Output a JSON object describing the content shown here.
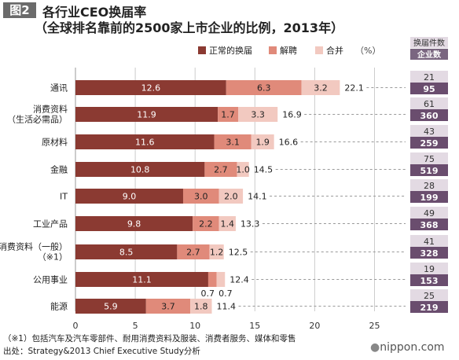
{
  "figure_tag": "图2",
  "title_line1": "各行业CEO换届率",
  "title_line2": "（全球排名靠前的2500家上市企业的比例，2013年）",
  "footnote": "（※1）包括汽车及汽车零部件、耐用消费资料及服装、消费者服务、媒体和零售",
  "source": "出处：Strategy&2013 Chief Executive Study分析",
  "brand": {
    "dot": "●",
    "name": "nippon.com"
  },
  "colors": {
    "normal": "#8b3a32",
    "dismissal": "#e08a7a",
    "merger": "#f2c9c0",
    "dash": "#999999",
    "count_light": "#e3dae3",
    "count_dark": "#6a4d6e",
    "header_bg": "#7a6680",
    "grid": "#cccccc"
  },
  "chart_data": {
    "type": "bar",
    "orientation": "horizontal",
    "stacked": true,
    "categories": [
      "通讯",
      "消费资料\n（生活必需品）",
      "原材料",
      "金融",
      "IT",
      "工业产品",
      "消费资料（一般）\n（※1）",
      "公用事业",
      "能源"
    ],
    "series": [
      {
        "name": "正常的换届",
        "values": [
          12.6,
          11.9,
          11.6,
          10.8,
          9.0,
          9.8,
          8.5,
          11.1,
          5.9
        ]
      },
      {
        "name": "解聘",
        "values": [
          6.3,
          1.7,
          3.1,
          2.7,
          3.0,
          2.2,
          2.7,
          0.7,
          3.7
        ]
      },
      {
        "name": "合并",
        "values": [
          3.2,
          3.3,
          1.9,
          1.0,
          2.0,
          1.4,
          1.2,
          0.7,
          1.8
        ]
      }
    ],
    "totals": [
      22.1,
      16.9,
      16.6,
      14.5,
      14.1,
      13.3,
      12.5,
      12.4,
      11.4
    ],
    "unit": "（%）",
    "x_ticks": [
      0,
      5,
      10,
      15,
      20,
      25
    ],
    "xlim": [
      0,
      25
    ],
    "grid": true,
    "legend_position": "top",
    "side_table": {
      "header": "换届件数",
      "header_sub": "企业数",
      "changes": [
        21,
        61,
        43,
        75,
        28,
        49,
        41,
        19,
        25
      ],
      "companies": [
        95,
        360,
        259,
        519,
        199,
        368,
        328,
        153,
        219
      ]
    }
  }
}
